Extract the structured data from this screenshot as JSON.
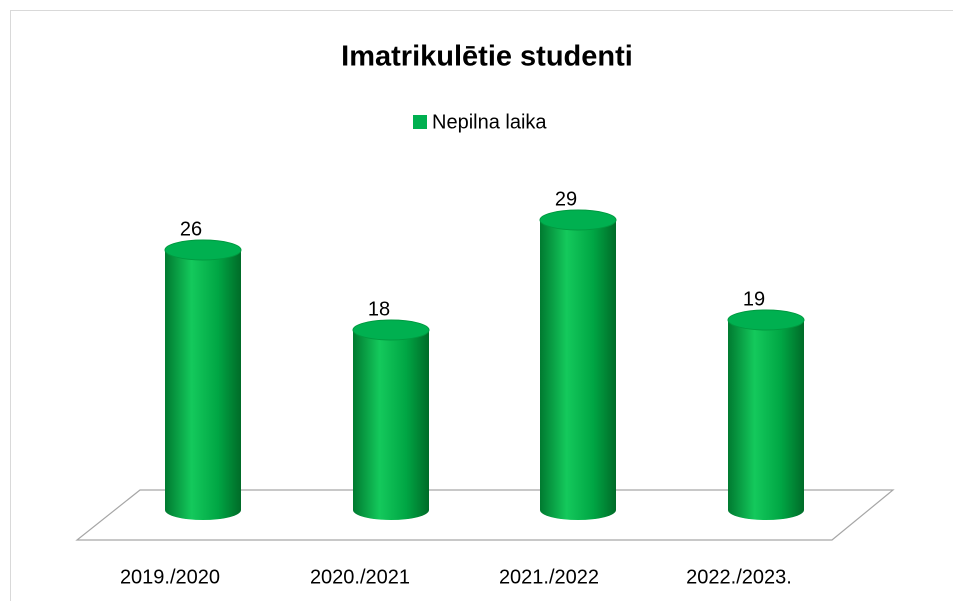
{
  "chart_data": {
    "type": "bar",
    "title": "Imatrikulētie studenti",
    "categories": [
      "2019./2020",
      "2020./2021",
      "2021./2022",
      "2022./2023."
    ],
    "series": [
      {
        "name": "Nepilna laika",
        "color": "#00b050",
        "values": [
          26,
          18,
          29,
          19
        ]
      }
    ]
  }
}
